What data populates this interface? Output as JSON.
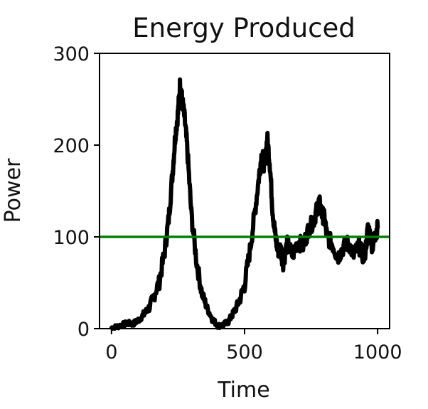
{
  "chart_data": {
    "type": "line",
    "title": "Energy Produced",
    "xlabel": "Time",
    "ylabel": "Power",
    "xlim": [
      -45,
      1045
    ],
    "ylim": [
      0,
      300
    ],
    "xticks": [
      0,
      500,
      1000
    ],
    "xtick_labels": [
      "0",
      "500",
      "1000"
    ],
    "yticks": [
      0,
      100,
      200,
      300
    ],
    "ytick_labels": [
      "0",
      "100",
      "200",
      "300"
    ],
    "grid": false,
    "reference_line": {
      "y": 100,
      "color": "#008000"
    },
    "series": [
      {
        "color": "#000000",
        "x": [
          0,
          20,
          40,
          60,
          80,
          100,
          120,
          140,
          160,
          180,
          200,
          215,
          230,
          240,
          250,
          258,
          265,
          275,
          285,
          300,
          320,
          340,
          360,
          380,
          400,
          420,
          440,
          460,
          480,
          500,
          520,
          540,
          555,
          565,
          575,
          585,
          595,
          605,
          615,
          625,
          635,
          645,
          660,
          680,
          700,
          720,
          740,
          760,
          770,
          780,
          790,
          800,
          810,
          830,
          850,
          870,
          890,
          910,
          930,
          950,
          965,
          980,
          990,
          1000
        ],
        "y": [
          1,
          2,
          4,
          6,
          5,
          9,
          15,
          22,
          36,
          52,
          85,
          120,
          172,
          212,
          235,
          268,
          250,
          228,
          195,
          125,
          72,
          38,
          22,
          10,
          3,
          4,
          8,
          18,
          30,
          48,
          85,
          130,
          168,
          192,
          175,
          208,
          180,
          130,
          102,
          85,
          88,
          72,
          92,
          80,
          95,
          90,
          108,
          118,
          128,
          138,
          126,
          120,
          100,
          92,
          78,
          88,
          94,
          80,
          90,
          76,
          112,
          90,
          102,
          110
        ],
        "noise_amplitude": 9
      }
    ]
  }
}
